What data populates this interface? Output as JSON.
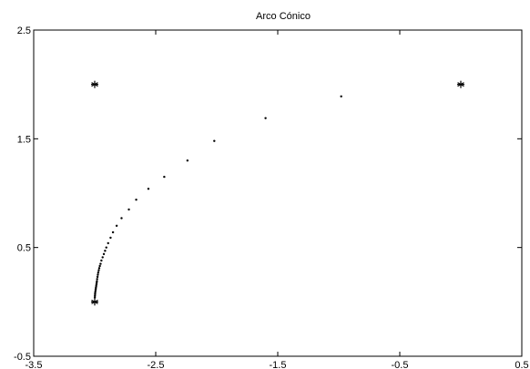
{
  "chart_data": {
    "type": "scatter",
    "title": "Arco Cónico",
    "xlabel": "",
    "ylabel": "",
    "xlim": [
      -3.5,
      0.5
    ],
    "ylim": [
      -0.5,
      2.5
    ],
    "x_ticks": [
      -3.5,
      -2.5,
      -1.5,
      -0.5,
      0.5
    ],
    "y_ticks": [
      -0.5,
      0.5,
      1.5,
      2.5
    ],
    "x_tick_labels": [
      "-3.5",
      "-2.5",
      "-1.5",
      "-0.5",
      "0.5"
    ],
    "y_tick_labels": [
      "-0.5",
      "0.5",
      "1.5",
      "2.5"
    ],
    "grid": false,
    "series": [
      {
        "marker": "asterisk",
        "color": "#000000",
        "x": [
          -3.0,
          -3.0,
          0.0
        ],
        "y": [
          2.0,
          0.0,
          2.0
        ]
      },
      {
        "marker": "dot",
        "color": "#000000",
        "x": [
          -0.98,
          -1.6,
          -2.02,
          -2.24,
          -2.43,
          -2.56,
          -2.66,
          -2.72,
          -2.78,
          -2.82,
          -2.85,
          -2.87,
          -2.89,
          -2.905,
          -2.915,
          -2.925,
          -2.935,
          -2.945,
          -2.952,
          -2.958,
          -2.963,
          -2.967,
          -2.971,
          -2.974,
          -2.977,
          -2.98,
          -2.982,
          -2.984,
          -2.986,
          -2.988,
          -2.99,
          -2.992,
          -2.994,
          -2.996,
          -2.997,
          -2.998,
          -2.999
        ],
        "y": [
          1.89,
          1.69,
          1.48,
          1.3,
          1.15,
          1.04,
          0.94,
          0.85,
          0.77,
          0.7,
          0.64,
          0.59,
          0.54,
          0.5,
          0.47,
          0.44,
          0.41,
          0.38,
          0.35,
          0.33,
          0.31,
          0.29,
          0.27,
          0.25,
          0.23,
          0.21,
          0.19,
          0.175,
          0.16,
          0.145,
          0.13,
          0.115,
          0.1,
          0.085,
          0.07,
          0.055,
          0.04
        ]
      }
    ]
  }
}
